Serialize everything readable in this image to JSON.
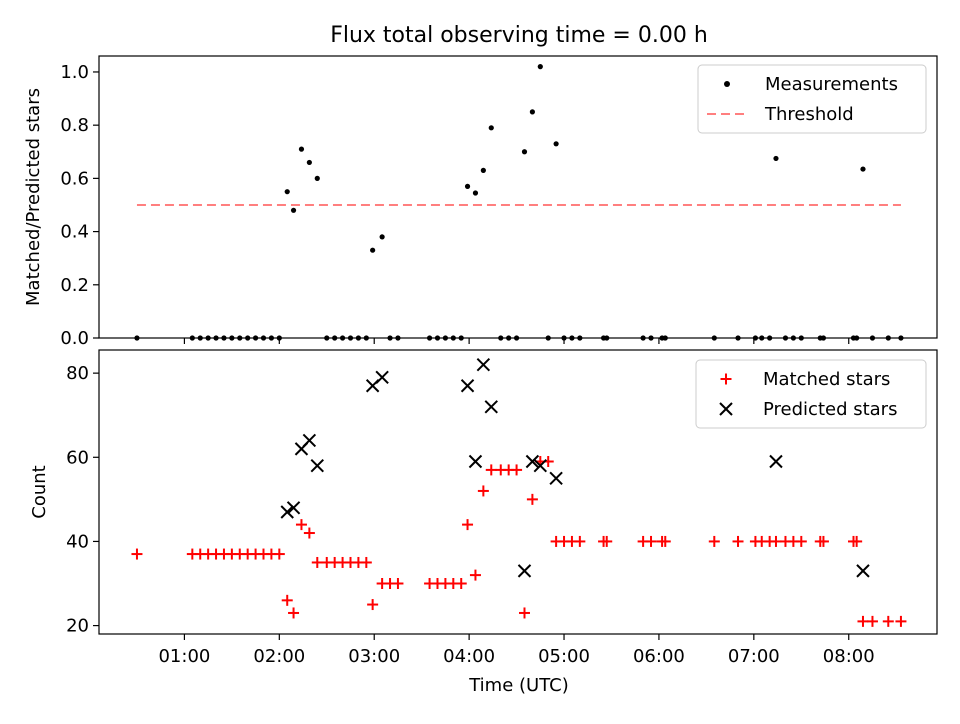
{
  "figure": {
    "title": "Flux total observing time = 0.00 h",
    "xlabel": "Time (UTC)",
    "xtick_labels": [
      "01:00",
      "02:00",
      "03:00",
      "04:00",
      "05:00",
      "06:00",
      "07:00",
      "08:00"
    ]
  },
  "colors": {
    "measurements": "#000000",
    "threshold": "#ff7f7f",
    "matched": "#ff0000",
    "predicted": "#000000"
  },
  "chart_data": [
    {
      "type": "scatter",
      "ylabel": "Matched/Predicted stars",
      "ylim": [
        0,
        1.06
      ],
      "yticks": [
        0.0,
        0.2,
        0.4,
        0.6,
        0.8,
        1.0
      ],
      "ytick_labels": [
        "0.0",
        "0.2",
        "0.4",
        "0.6",
        "0.8",
        "1.0"
      ],
      "legend_position": "top-right",
      "legend": [
        "Measurements",
        "Threshold"
      ],
      "series": [
        {
          "name": "Measurements",
          "marker": "dot",
          "points": [
            [
              "00:30",
              0
            ],
            [
              "01:05",
              0
            ],
            [
              "01:10",
              0
            ],
            [
              "01:15",
              0
            ],
            [
              "01:20",
              0
            ],
            [
              "01:25",
              0
            ],
            [
              "01:30",
              0
            ],
            [
              "01:35",
              0
            ],
            [
              "01:40",
              0
            ],
            [
              "01:45",
              0
            ],
            [
              "01:50",
              0
            ],
            [
              "01:55",
              0
            ],
            [
              "02:00",
              0
            ],
            [
              "02:05",
              0.55
            ],
            [
              "02:09",
              0.48
            ],
            [
              "02:14",
              0.71
            ],
            [
              "02:19",
              0.66
            ],
            [
              "02:24",
              0.6
            ],
            [
              "02:30",
              0
            ],
            [
              "02:35",
              0
            ],
            [
              "02:40",
              0
            ],
            [
              "02:45",
              0
            ],
            [
              "02:50",
              0
            ],
            [
              "02:55",
              0
            ],
            [
              "02:59",
              0.33
            ],
            [
              "03:05",
              0.38
            ],
            [
              "03:10",
              0
            ],
            [
              "03:15",
              0
            ],
            [
              "03:35",
              0
            ],
            [
              "03:40",
              0
            ],
            [
              "03:45",
              0
            ],
            [
              "03:50",
              0
            ],
            [
              "03:55",
              0
            ],
            [
              "03:59",
              0.57
            ],
            [
              "04:04",
              0.545
            ],
            [
              "04:09",
              0.63
            ],
            [
              "04:14",
              0.79
            ],
            [
              "04:20",
              0
            ],
            [
              "04:25",
              0
            ],
            [
              "04:30",
              0
            ],
            [
              "04:35",
              0.7
            ],
            [
              "04:40",
              0.85
            ],
            [
              "04:45",
              1.02
            ],
            [
              "04:50",
              0
            ],
            [
              "04:55",
              0.73
            ],
            [
              "05:00",
              0
            ],
            [
              "05:05",
              0
            ],
            [
              "05:10",
              0
            ],
            [
              "05:25",
              0
            ],
            [
              "05:27",
              0
            ],
            [
              "05:50",
              0
            ],
            [
              "05:55",
              0
            ],
            [
              "06:02",
              0
            ],
            [
              "06:04",
              0
            ],
            [
              "06:35",
              0
            ],
            [
              "06:50",
              0
            ],
            [
              "07:01",
              0
            ],
            [
              "07:05",
              0
            ],
            [
              "07:10",
              0
            ],
            [
              "07:14",
              0.675
            ],
            [
              "07:20",
              0
            ],
            [
              "07:25",
              0
            ],
            [
              "07:30",
              0
            ],
            [
              "07:42",
              0
            ],
            [
              "07:44",
              0
            ],
            [
              "08:03",
              0
            ],
            [
              "08:05",
              0
            ],
            [
              "08:09",
              0.635
            ],
            [
              "08:15",
              0
            ],
            [
              "08:25",
              0
            ],
            [
              "08:33",
              0
            ]
          ]
        },
        {
          "name": "Threshold",
          "marker": "dashed-line",
          "points": [
            [
              "00:30",
              0.5
            ],
            [
              "08:33",
              0.5
            ]
          ]
        }
      ]
    },
    {
      "type": "scatter",
      "ylabel": "Count",
      "ylim": [
        18,
        85.5
      ],
      "yticks": [
        20,
        40,
        60,
        80
      ],
      "ytick_labels": [
        "20",
        "40",
        "60",
        "80"
      ],
      "legend_position": "top-right",
      "legend": [
        "Matched stars",
        "Predicted stars"
      ],
      "series": [
        {
          "name": "Matched stars",
          "marker": "plus",
          "points": [
            [
              "00:30",
              37
            ],
            [
              "01:05",
              37
            ],
            [
              "01:10",
              37
            ],
            [
              "01:15",
              37
            ],
            [
              "01:20",
              37
            ],
            [
              "01:25",
              37
            ],
            [
              "01:30",
              37
            ],
            [
              "01:35",
              37
            ],
            [
              "01:40",
              37
            ],
            [
              "01:45",
              37
            ],
            [
              "01:50",
              37
            ],
            [
              "01:55",
              37
            ],
            [
              "02:00",
              37
            ],
            [
              "02:05",
              26
            ],
            [
              "02:09",
              23
            ],
            [
              "02:14",
              44
            ],
            [
              "02:19",
              42
            ],
            [
              "02:24",
              35
            ],
            [
              "02:30",
              35
            ],
            [
              "02:35",
              35
            ],
            [
              "02:40",
              35
            ],
            [
              "02:45",
              35
            ],
            [
              "02:50",
              35
            ],
            [
              "02:55",
              35
            ],
            [
              "02:59",
              25
            ],
            [
              "03:05",
              30
            ],
            [
              "03:10",
              30
            ],
            [
              "03:15",
              30
            ],
            [
              "03:35",
              30
            ],
            [
              "03:40",
              30
            ],
            [
              "03:45",
              30
            ],
            [
              "03:50",
              30
            ],
            [
              "03:55",
              30
            ],
            [
              "03:59",
              44
            ],
            [
              "04:04",
              32
            ],
            [
              "04:09",
              52
            ],
            [
              "04:14",
              57
            ],
            [
              "04:20",
              57
            ],
            [
              "04:25",
              57
            ],
            [
              "04:30",
              57
            ],
            [
              "04:35",
              23
            ],
            [
              "04:40",
              50
            ],
            [
              "04:45",
              59
            ],
            [
              "04:50",
              59
            ],
            [
              "04:55",
              40
            ],
            [
              "05:00",
              40
            ],
            [
              "05:05",
              40
            ],
            [
              "05:10",
              40
            ],
            [
              "05:25",
              40
            ],
            [
              "05:27",
              40
            ],
            [
              "05:50",
              40
            ],
            [
              "05:55",
              40
            ],
            [
              "06:02",
              40
            ],
            [
              "06:04",
              40
            ],
            [
              "06:35",
              40
            ],
            [
              "06:50",
              40
            ],
            [
              "07:01",
              40
            ],
            [
              "07:05",
              40
            ],
            [
              "07:10",
              40
            ],
            [
              "07:14",
              40
            ],
            [
              "07:20",
              40
            ],
            [
              "07:25",
              40
            ],
            [
              "07:30",
              40
            ],
            [
              "07:42",
              40
            ],
            [
              "07:44",
              40
            ],
            [
              "08:03",
              40
            ],
            [
              "08:05",
              40
            ],
            [
              "08:09",
              21
            ],
            [
              "08:15",
              21
            ],
            [
              "08:25",
              21
            ],
            [
              "08:33",
              21
            ]
          ]
        },
        {
          "name": "Predicted stars",
          "marker": "x",
          "points": [
            [
              "02:05",
              47
            ],
            [
              "02:09",
              48
            ],
            [
              "02:14",
              62
            ],
            [
              "02:19",
              64
            ],
            [
              "02:24",
              58
            ],
            [
              "02:59",
              77
            ],
            [
              "03:05",
              79
            ],
            [
              "03:59",
              77
            ],
            [
              "04:04",
              59
            ],
            [
              "04:09",
              82
            ],
            [
              "04:14",
              72
            ],
            [
              "04:35",
              33
            ],
            [
              "04:40",
              59
            ],
            [
              "04:45",
              58
            ],
            [
              "04:55",
              55
            ],
            [
              "07:14",
              59
            ],
            [
              "08:09",
              33
            ]
          ]
        }
      ]
    }
  ]
}
